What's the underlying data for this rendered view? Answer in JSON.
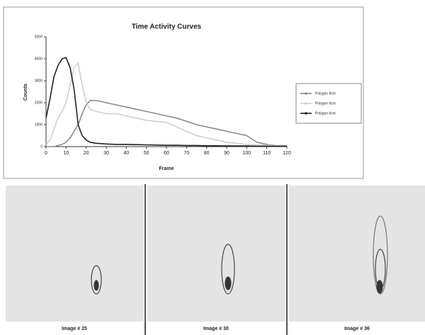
{
  "chart_data": {
    "type": "line",
    "title": "Time Activity Curves",
    "xlabel": "Frame",
    "ylabel": "Counts",
    "x": [
      0,
      2,
      4,
      6,
      8,
      10,
      12,
      14,
      16,
      18,
      20,
      22,
      25,
      30,
      35,
      40,
      45,
      50,
      55,
      60,
      65,
      70,
      75,
      80,
      85,
      90,
      95,
      100,
      105,
      110,
      115,
      120
    ],
    "series": [
      {
        "name": "Polygon 6cm",
        "color": "#8a8a8a",
        "values": [
          0,
          0,
          0,
          50,
          100,
          200,
          400,
          700,
          1000,
          1500,
          1900,
          2100,
          2100,
          2000,
          1900,
          1800,
          1700,
          1600,
          1500,
          1400,
          1300,
          1150,
          1000,
          900,
          800,
          700,
          600,
          500,
          200,
          100,
          50,
          50
        ]
      },
      {
        "name": "Polygon 6cm",
        "color": "#cfcfcf",
        "values": [
          100,
          300,
          800,
          1300,
          1600,
          2000,
          2800,
          3600,
          3800,
          2800,
          2000,
          1700,
          1600,
          1500,
          1500,
          1400,
          1300,
          1200,
          1150,
          1100,
          900,
          700,
          500,
          400,
          300,
          200,
          150,
          100,
          80,
          60,
          50,
          40
        ]
      },
      {
        "name": "Polygon 6cm",
        "color": "#222222",
        "values": [
          1300,
          2200,
          3200,
          3700,
          4000,
          4050,
          3600,
          2600,
          1000,
          500,
          300,
          200,
          150,
          120,
          100,
          100,
          90,
          80,
          70,
          60,
          60,
          50,
          50,
          40,
          40,
          30,
          30,
          30,
          20,
          20,
          20,
          20
        ]
      }
    ],
    "xlim": [
      0,
      120
    ],
    "xticks": [
      0,
      10,
      20,
      30,
      40,
      50,
      60,
      70,
      80,
      90,
      100,
      110,
      120
    ],
    "ylim": [
      0,
      5000
    ],
    "yticks": [
      0,
      1000,
      2000,
      3000,
      4000,
      5000
    ]
  },
  "images": [
    {
      "label": "Image # 25"
    },
    {
      "label": "Image # 30"
    },
    {
      "label": "Image # 36"
    }
  ]
}
